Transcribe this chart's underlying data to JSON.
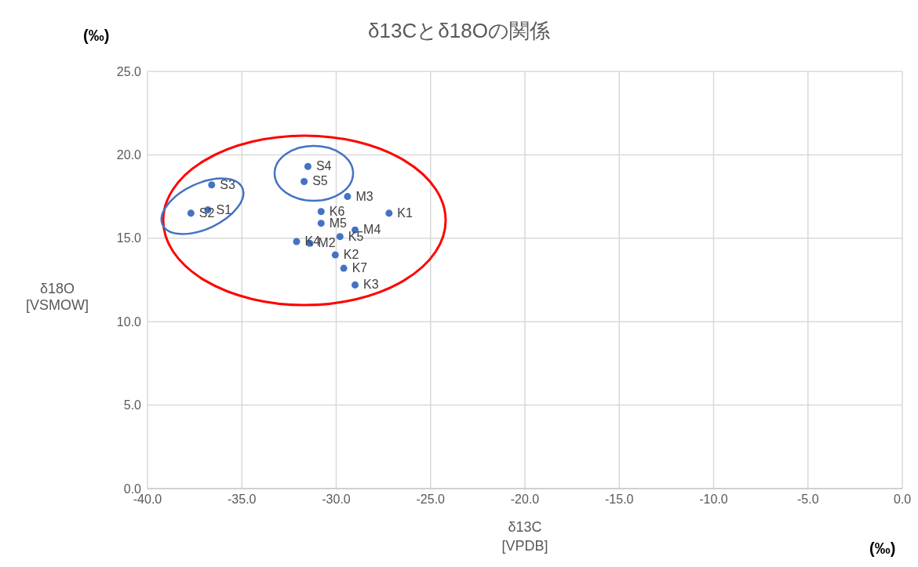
{
  "chart_data": {
    "type": "scatter",
    "title": "δ13Cとδ18Oの関係",
    "xlabel": "δ13C\n[VPDB]",
    "ylabel": "δ18O\n[VSMOW]",
    "annotations": [
      "(‰)",
      "(‰)"
    ],
    "x": [
      -36.6,
      -36.8,
      -37.7,
      -31.5,
      -31.7,
      -29.4,
      -30.8,
      -27.2,
      -30.8,
      -29.0,
      -29.8,
      -32.1,
      -31.4,
      -30.05,
      -29.6,
      -29.0
    ],
    "values": [
      18.2,
      16.7,
      16.5,
      19.3,
      18.4,
      17.5,
      16.6,
      16.5,
      15.9,
      15.5,
      15.1,
      14.8,
      14.7,
      14.0,
      13.2,
      12.2
    ],
    "value_labels": [
      "S3",
      "S1",
      "S2",
      "S4",
      "S5",
      "M3",
      "K6",
      "K1",
      "M5",
      "M4",
      "K5",
      "K4",
      "M2",
      "K2",
      "K7",
      "K3"
    ],
    "color": "#4472c4",
    "marker": "circle",
    "grid": true,
    "xlim": [
      -40,
      0
    ],
    "xticks": [
      {
        "value": -40,
        "label": "-40.0"
      },
      {
        "value": -35,
        "label": "-35.0"
      },
      {
        "value": -30,
        "label": "-30.0"
      },
      {
        "value": -25,
        "label": "-25.0"
      },
      {
        "value": -20,
        "label": "-20.0"
      },
      {
        "value": -15,
        "label": "-15.0"
      },
      {
        "value": -10,
        "label": "-10.0"
      },
      {
        "value": -5,
        "label": "-5.0"
      },
      {
        "value": 0,
        "label": "0.0"
      }
    ],
    "ylim": [
      0,
      25
    ],
    "yticks": [
      {
        "value": 0,
        "label": "0.0"
      },
      {
        "value": 5,
        "label": "5.0"
      },
      {
        "value": 10,
        "label": "10.0"
      },
      {
        "value": 15,
        "label": "15.0"
      },
      {
        "value": 20,
        "label": "20.0"
      },
      {
        "value": 25,
        "label": "25.0"
      }
    ]
  }
}
